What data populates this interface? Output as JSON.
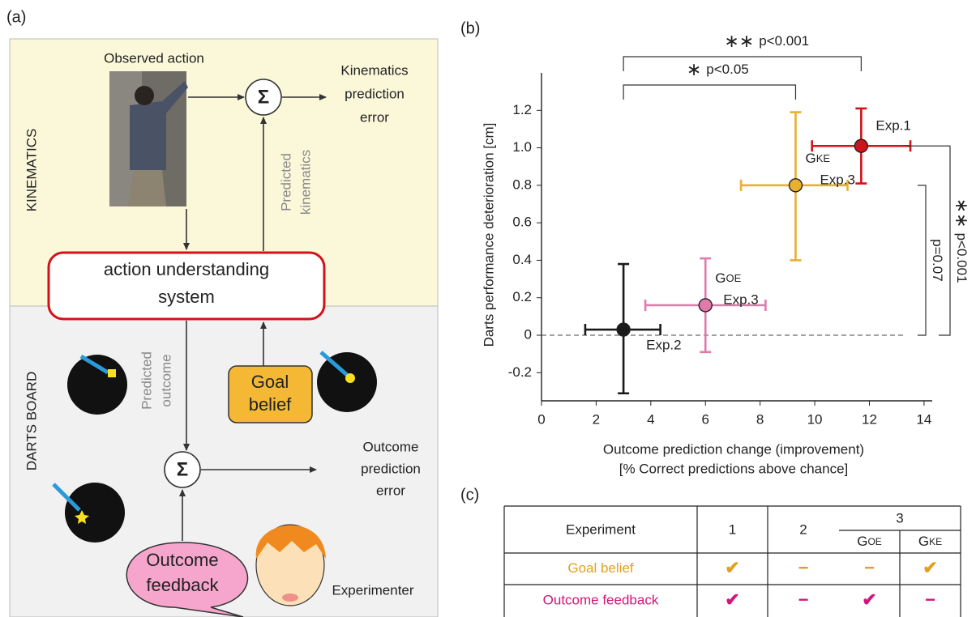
{
  "panels": {
    "a": "(a)",
    "b": "(b)",
    "c": "(c)"
  },
  "diagram": {
    "sections": [
      "KINEMATICS",
      "DARTS BOARD"
    ],
    "observed_action": "Observed action",
    "sum_symbol": "Σ",
    "kinematics_error": [
      "Kinematics",
      "prediction",
      "error"
    ],
    "predicted_kinematics": [
      "Predicted",
      "kinematics"
    ],
    "system": [
      "action understanding",
      "system"
    ],
    "predicted_outcome": [
      "Predicted",
      "outcome"
    ],
    "goal_belief": [
      "Goal",
      "belief"
    ],
    "outcome_error": [
      "Outcome",
      "prediction",
      "error"
    ],
    "outcome_feedback": [
      "Outcome",
      "feedback"
    ],
    "experimenter": "Experimenter"
  },
  "chart_data": {
    "type": "errorbar_scatter",
    "xlabel": [
      "Outcome prediction change (improvement)",
      "[% Correct predictions above chance]"
    ],
    "ylabel": "Darts performance deterioration [cm]",
    "xlim": [
      0,
      14.3
    ],
    "ylim": [
      -0.35,
      1.4
    ],
    "xticks": [
      0,
      2,
      4,
      6,
      8,
      10,
      12,
      14
    ],
    "yticks": [
      -0.2,
      0,
      0.2,
      0.4,
      0.6,
      0.8,
      {
        "value": 1,
        "label": "1.0"
      },
      1.2
    ],
    "baseline": 0,
    "points": [
      {
        "label_exp": "Exp.2",
        "color": "#1a1a1a",
        "x": 3,
        "y": 0.03,
        "x_range": [
          1.6,
          4.35
        ],
        "y_range": [
          -0.31,
          0.38
        ]
      },
      {
        "label_main": "G",
        "label_sub": "OE",
        "label_exp": "Exp.3",
        "color": "#e07aaa",
        "x": 6,
        "y": 0.16,
        "x_range": [
          3.8,
          8.2
        ],
        "y_range": [
          -0.09,
          0.41
        ]
      },
      {
        "label_main": "G",
        "label_sub": "KE",
        "label_exp": "Exp.3",
        "color": "#e8b030",
        "x": 9.3,
        "y": 0.8,
        "x_range": [
          7.3,
          11.2
        ],
        "y_range": [
          0.4,
          1.19
        ]
      },
      {
        "label_exp": "Exp.1",
        "color": "#d2121a",
        "x": 11.7,
        "y": 1.01,
        "x_range": [
          9.9,
          13.5
        ],
        "y_range": [
          0.81,
          1.21
        ]
      }
    ],
    "h_brackets": [
      {
        "stars": "∗∗",
        "text": "p<0.001",
        "from": 3,
        "to": 11.7
      },
      {
        "stars": "∗",
        "text": "p<0.05",
        "from": 3,
        "to": 9.3
      }
    ],
    "v_brackets": [
      {
        "stars": "∗∗",
        "text": "p<0.001",
        "from": 1.01,
        "to": 0
      },
      {
        "text": "p=0.07",
        "from": 0.8,
        "to": 0
      }
    ]
  },
  "table": {
    "header": [
      "Experiment",
      "1",
      "2",
      "3"
    ],
    "subheader": [
      [
        "G",
        "OE"
      ],
      [
        "G",
        "KE"
      ]
    ],
    "rows": [
      [
        "Goal belief",
        "✔",
        "−",
        "−",
        "✔"
      ],
      [
        "Outcome feedback",
        "✔",
        "−",
        "✔",
        "−"
      ]
    ]
  }
}
